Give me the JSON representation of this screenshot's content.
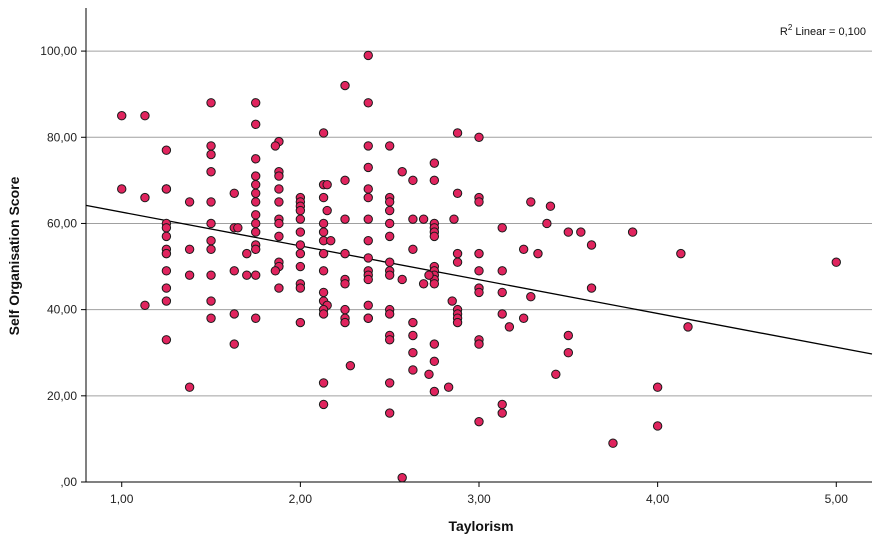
{
  "chart_data": {
    "type": "scatter",
    "title": "",
    "xlabel": "Taylorism",
    "ylabel": "Self Organisation Score",
    "xlim": [
      0.8,
      5.2
    ],
    "ylim": [
      0,
      110
    ],
    "x_ticks": [
      {
        "value": 1,
        "label": "1,00"
      },
      {
        "value": 2,
        "label": "2,00"
      },
      {
        "value": 3,
        "label": "3,00"
      },
      {
        "value": 4,
        "label": "4,00"
      },
      {
        "value": 5,
        "label": "5,00"
      }
    ],
    "y_ticks": [
      {
        "value": 0,
        "label": ",00"
      },
      {
        "value": 20,
        "label": "20,00"
      },
      {
        "value": 40,
        "label": "40,00"
      },
      {
        "value": 60,
        "label": "60,00"
      },
      {
        "value": 80,
        "label": "80,00"
      },
      {
        "value": 100,
        "label": "100,00"
      }
    ],
    "horizontal_grid": true,
    "annotation": {
      "prefix": "R",
      "sup": "2",
      "suffix": " Linear = 0,100",
      "placement": "top-right"
    },
    "fit_line": {
      "type": "linear",
      "x": [
        0.8,
        5.2
      ],
      "y": [
        64.2,
        29.7
      ]
    },
    "marker_color": "#e0245e",
    "marker_edge": "#1a1a1a",
    "line_color": "#000000",
    "grid_color": "#a0a0a0",
    "points": [
      [
        1.0,
        85
      ],
      [
        1.13,
        85
      ],
      [
        1.0,
        68
      ],
      [
        1.13,
        66
      ],
      [
        1.13,
        41
      ],
      [
        1.25,
        77
      ],
      [
        1.25,
        68
      ],
      [
        1.25,
        68
      ],
      [
        1.25,
        60
      ],
      [
        1.25,
        59
      ],
      [
        1.25,
        57
      ],
      [
        1.25,
        54
      ],
      [
        1.25,
        53
      ],
      [
        1.25,
        49
      ],
      [
        1.25,
        45
      ],
      [
        1.25,
        42
      ],
      [
        1.25,
        33
      ],
      [
        1.38,
        65
      ],
      [
        1.38,
        54
      ],
      [
        1.38,
        48
      ],
      [
        1.38,
        22
      ],
      [
        1.5,
        88
      ],
      [
        1.5,
        78
      ],
      [
        1.5,
        76
      ],
      [
        1.5,
        72
      ],
      [
        1.5,
        65
      ],
      [
        1.5,
        60
      ],
      [
        1.5,
        56
      ],
      [
        1.5,
        54
      ],
      [
        1.5,
        48
      ],
      [
        1.5,
        42
      ],
      [
        1.5,
        38
      ],
      [
        1.63,
        67
      ],
      [
        1.63,
        59
      ],
      [
        1.65,
        59
      ],
      [
        1.63,
        49
      ],
      [
        1.63,
        39
      ],
      [
        1.63,
        32
      ],
      [
        1.75,
        88
      ],
      [
        1.75,
        83
      ],
      [
        1.75,
        75
      ],
      [
        1.75,
        71
      ],
      [
        1.75,
        69
      ],
      [
        1.75,
        67
      ],
      [
        1.75,
        65
      ],
      [
        1.75,
        62
      ],
      [
        1.75,
        60
      ],
      [
        1.75,
        58
      ],
      [
        1.75,
        55
      ],
      [
        1.75,
        54
      ],
      [
        1.75,
        48
      ],
      [
        1.75,
        38
      ],
      [
        1.7,
        53
      ],
      [
        1.7,
        48
      ],
      [
        1.88,
        79
      ],
      [
        1.86,
        78
      ],
      [
        1.88,
        72
      ],
      [
        1.88,
        71
      ],
      [
        1.88,
        68
      ],
      [
        1.88,
        65
      ],
      [
        1.88,
        61
      ],
      [
        1.88,
        60
      ],
      [
        1.88,
        57
      ],
      [
        1.88,
        51
      ],
      [
        1.88,
        50
      ],
      [
        1.86,
        49
      ],
      [
        1.88,
        45
      ],
      [
        2.0,
        66
      ],
      [
        2.0,
        65
      ],
      [
        2.0,
        64
      ],
      [
        2.0,
        63
      ],
      [
        2.0,
        61
      ],
      [
        2.0,
        58
      ],
      [
        2.0,
        55
      ],
      [
        2.0,
        53
      ],
      [
        2.0,
        50
      ],
      [
        2.0,
        46
      ],
      [
        2.0,
        45
      ],
      [
        2.0,
        37
      ],
      [
        2.13,
        81
      ],
      [
        2.13,
        69
      ],
      [
        2.15,
        69
      ],
      [
        2.13,
        66
      ],
      [
        2.15,
        63
      ],
      [
        2.13,
        60
      ],
      [
        2.13,
        58
      ],
      [
        2.13,
        56
      ],
      [
        2.17,
        56
      ],
      [
        2.13,
        53
      ],
      [
        2.13,
        49
      ],
      [
        2.13,
        44
      ],
      [
        2.13,
        42
      ],
      [
        2.15,
        41
      ],
      [
        2.13,
        40
      ],
      [
        2.13,
        39
      ],
      [
        2.13,
        23
      ],
      [
        2.13,
        18
      ],
      [
        2.25,
        92
      ],
      [
        2.25,
        70
      ],
      [
        2.25,
        61
      ],
      [
        2.25,
        53
      ],
      [
        2.25,
        47
      ],
      [
        2.25,
        46
      ],
      [
        2.25,
        40
      ],
      [
        2.25,
        38
      ],
      [
        2.25,
        37
      ],
      [
        2.28,
        27
      ],
      [
        2.38,
        99
      ],
      [
        2.38,
        88
      ],
      [
        2.38,
        78
      ],
      [
        2.38,
        73
      ],
      [
        2.38,
        68
      ],
      [
        2.38,
        66
      ],
      [
        2.38,
        61
      ],
      [
        2.38,
        56
      ],
      [
        2.38,
        52
      ],
      [
        2.38,
        49
      ],
      [
        2.38,
        48
      ],
      [
        2.38,
        47
      ],
      [
        2.38,
        41
      ],
      [
        2.38,
        38
      ],
      [
        2.38,
        38
      ],
      [
        2.5,
        78
      ],
      [
        2.5,
        66
      ],
      [
        2.5,
        65
      ],
      [
        2.5,
        63
      ],
      [
        2.5,
        60
      ],
      [
        2.5,
        57
      ],
      [
        2.5,
        51
      ],
      [
        2.5,
        49
      ],
      [
        2.5,
        48
      ],
      [
        2.5,
        40
      ],
      [
        2.5,
        39
      ],
      [
        2.5,
        34
      ],
      [
        2.5,
        33
      ],
      [
        2.5,
        23
      ],
      [
        2.5,
        16
      ],
      [
        2.57,
        72
      ],
      [
        2.57,
        47
      ],
      [
        2.57,
        1
      ],
      [
        2.63,
        70
      ],
      [
        2.63,
        61
      ],
      [
        2.63,
        54
      ],
      [
        2.63,
        37
      ],
      [
        2.63,
        34
      ],
      [
        2.63,
        30
      ],
      [
        2.63,
        26
      ],
      [
        2.69,
        61
      ],
      [
        2.69,
        46
      ],
      [
        2.75,
        74
      ],
      [
        2.75,
        70
      ],
      [
        2.75,
        60
      ],
      [
        2.75,
        59
      ],
      [
        2.75,
        58
      ],
      [
        2.75,
        57
      ],
      [
        2.75,
        50
      ],
      [
        2.75,
        49
      ],
      [
        2.75,
        48
      ],
      [
        2.75,
        47
      ],
      [
        2.75,
        46
      ],
      [
        2.75,
        32
      ],
      [
        2.75,
        28
      ],
      [
        2.75,
        21
      ],
      [
        2.72,
        25
      ],
      [
        2.72,
        48
      ],
      [
        2.88,
        81
      ],
      [
        2.88,
        67
      ],
      [
        2.86,
        61
      ],
      [
        2.88,
        53
      ],
      [
        2.88,
        51
      ],
      [
        2.85,
        42
      ],
      [
        2.88,
        40
      ],
      [
        2.88,
        39
      ],
      [
        2.88,
        38
      ],
      [
        2.88,
        37
      ],
      [
        2.83,
        22
      ],
      [
        3.0,
        80
      ],
      [
        3.0,
        66
      ],
      [
        3.0,
        65
      ],
      [
        3.0,
        53
      ],
      [
        3.0,
        49
      ],
      [
        3.0,
        45
      ],
      [
        3.0,
        44
      ],
      [
        3.0,
        33
      ],
      [
        3.0,
        32
      ],
      [
        3.0,
        14
      ],
      [
        3.13,
        59
      ],
      [
        3.13,
        49
      ],
      [
        3.13,
        44
      ],
      [
        3.13,
        39
      ],
      [
        3.13,
        18
      ],
      [
        3.13,
        16
      ],
      [
        3.17,
        36
      ],
      [
        3.25,
        54
      ],
      [
        3.25,
        38
      ],
      [
        3.29,
        65
      ],
      [
        3.29,
        43
      ],
      [
        3.33,
        53
      ],
      [
        3.38,
        60
      ],
      [
        3.4,
        64
      ],
      [
        3.43,
        25
      ],
      [
        3.5,
        58
      ],
      [
        3.5,
        34
      ],
      [
        3.5,
        30
      ],
      [
        3.57,
        58
      ],
      [
        3.63,
        55
      ],
      [
        3.63,
        45
      ],
      [
        3.75,
        9
      ],
      [
        3.86,
        58
      ],
      [
        4.0,
        22
      ],
      [
        4.0,
        13
      ],
      [
        4.13,
        53
      ],
      [
        4.17,
        36
      ],
      [
        5.0,
        51
      ]
    ]
  }
}
